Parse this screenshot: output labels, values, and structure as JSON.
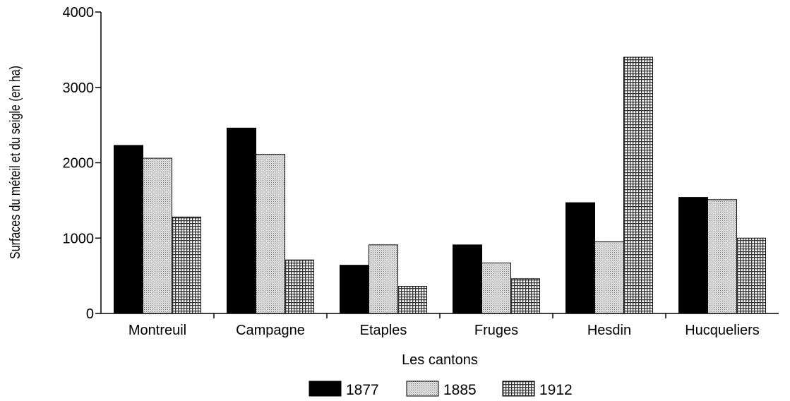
{
  "chart_data": {
    "type": "bar",
    "categories": [
      "Montreuil",
      "Campagne",
      "Etaples",
      "Fruges",
      "Hesdin",
      "Hucqueliers"
    ],
    "series": [
      {
        "name": "1877",
        "color": "#000000",
        "pattern": "solid",
        "values": [
          2230,
          2460,
          640,
          910,
          1470,
          1540
        ]
      },
      {
        "name": "1885",
        "color": "#c8c8c8",
        "pattern": "fine-dots",
        "values": [
          2060,
          2110,
          910,
          670,
          950,
          1510
        ]
      },
      {
        "name": "1912",
        "color": "#8a8a8a",
        "pattern": "fine-grid",
        "values": [
          1280,
          710,
          360,
          460,
          3400,
          1000
        ]
      }
    ],
    "xlabel": "Les cantons",
    "ylabel": "Surfaces du méteil et du seigle (en ha)",
    "ylim": [
      0,
      4000
    ],
    "yticks": [
      0,
      1000,
      2000,
      3000,
      4000
    ],
    "legend_position": "bottom",
    "grid": false
  }
}
